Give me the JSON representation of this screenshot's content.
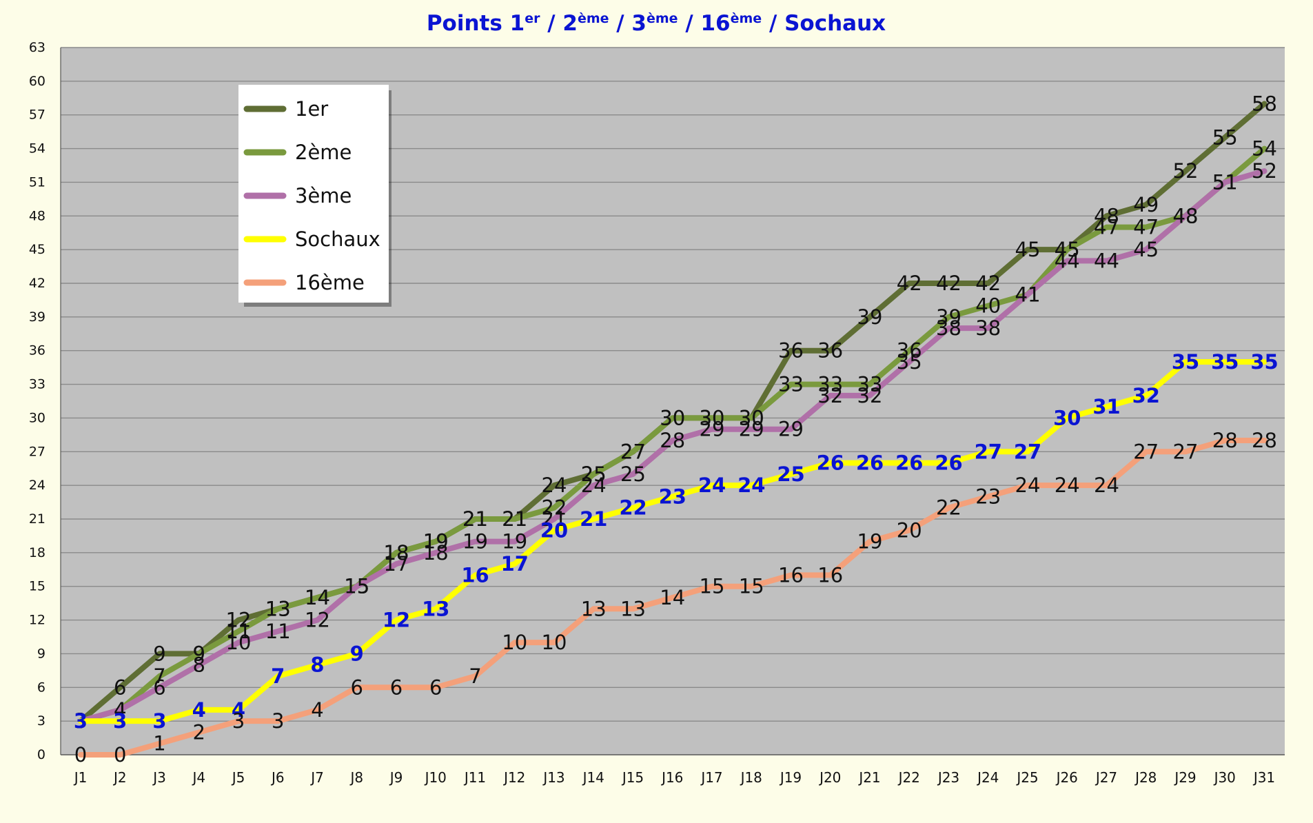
{
  "chart_data": {
    "type": "line",
    "title": {
      "main": "Points 1",
      "sup1": "er",
      "sep1": " / 2",
      "sup2": "ème",
      "sep2": " / 3",
      "sup3": "ème",
      "sep3": " / 16",
      "sup4": "ème",
      "tail": " / Sochaux"
    },
    "xlabel": "",
    "ylabel": "",
    "ylim": [
      0,
      63
    ],
    "yticks": [
      0,
      3,
      6,
      9,
      12,
      15,
      18,
      21,
      24,
      27,
      30,
      33,
      36,
      39,
      42,
      45,
      48,
      51,
      54,
      57,
      60,
      63
    ],
    "grid": true,
    "legend_position": "top-left",
    "categories": [
      "J1",
      "J2",
      "J3",
      "J4",
      "J5",
      "J6",
      "J7",
      "J8",
      "J9",
      "J10",
      "J11",
      "J12",
      "J13",
      "J14",
      "J15",
      "J16",
      "J17",
      "J18",
      "J19",
      "J20",
      "J21",
      "J22",
      "J23",
      "J24",
      "J25",
      "J26",
      "J27",
      "J28",
      "J29",
      "J30",
      "J31"
    ],
    "series": [
      {
        "name": "1er",
        "color": "#5f6e34",
        "label_color": "#111111",
        "values": [
          3,
          6,
          9,
          9,
          12,
          13,
          14,
          15,
          18,
          19,
          21,
          21,
          24,
          25,
          27,
          30,
          30,
          30,
          36,
          36,
          39,
          42,
          42,
          42,
          45,
          45,
          48,
          49,
          52,
          55,
          58
        ]
      },
      {
        "name": "2ème",
        "color": "#7a9a3e",
        "label_color": "#111111",
        "values": [
          3,
          4,
          7,
          9,
          11,
          13,
          14,
          15,
          18,
          19,
          21,
          21,
          22,
          25,
          27,
          30,
          30,
          30,
          33,
          33,
          33,
          36,
          39,
          40,
          41,
          45,
          47,
          47,
          48,
          51,
          54
        ]
      },
      {
        "name": "3ème",
        "color": "#b070a8",
        "label_color": "#111111",
        "values": [
          3,
          4,
          6,
          8,
          10,
          11,
          12,
          15,
          17,
          18,
          19,
          19,
          21,
          24,
          25,
          28,
          29,
          29,
          29,
          32,
          32,
          35,
          38,
          38,
          41,
          44,
          44,
          45,
          48,
          51,
          52
        ]
      },
      {
        "name": "Sochaux",
        "color": "#ffff00",
        "label_color": "#0a14d2",
        "values": [
          3,
          3,
          3,
          4,
          4,
          7,
          8,
          9,
          12,
          13,
          16,
          17,
          20,
          21,
          22,
          23,
          24,
          24,
          25,
          26,
          26,
          26,
          26,
          27,
          27,
          30,
          31,
          32,
          35,
          35,
          35
        ]
      },
      {
        "name": "16ème",
        "color": "#f4a07a",
        "label_color": "#111111",
        "values": [
          0,
          0,
          1,
          2,
          3,
          3,
          4,
          6,
          6,
          6,
          7,
          10,
          10,
          13,
          13,
          14,
          15,
          15,
          16,
          16,
          19,
          20,
          22,
          23,
          24,
          24,
          24,
          27,
          27,
          28,
          28
        ]
      }
    ]
  }
}
